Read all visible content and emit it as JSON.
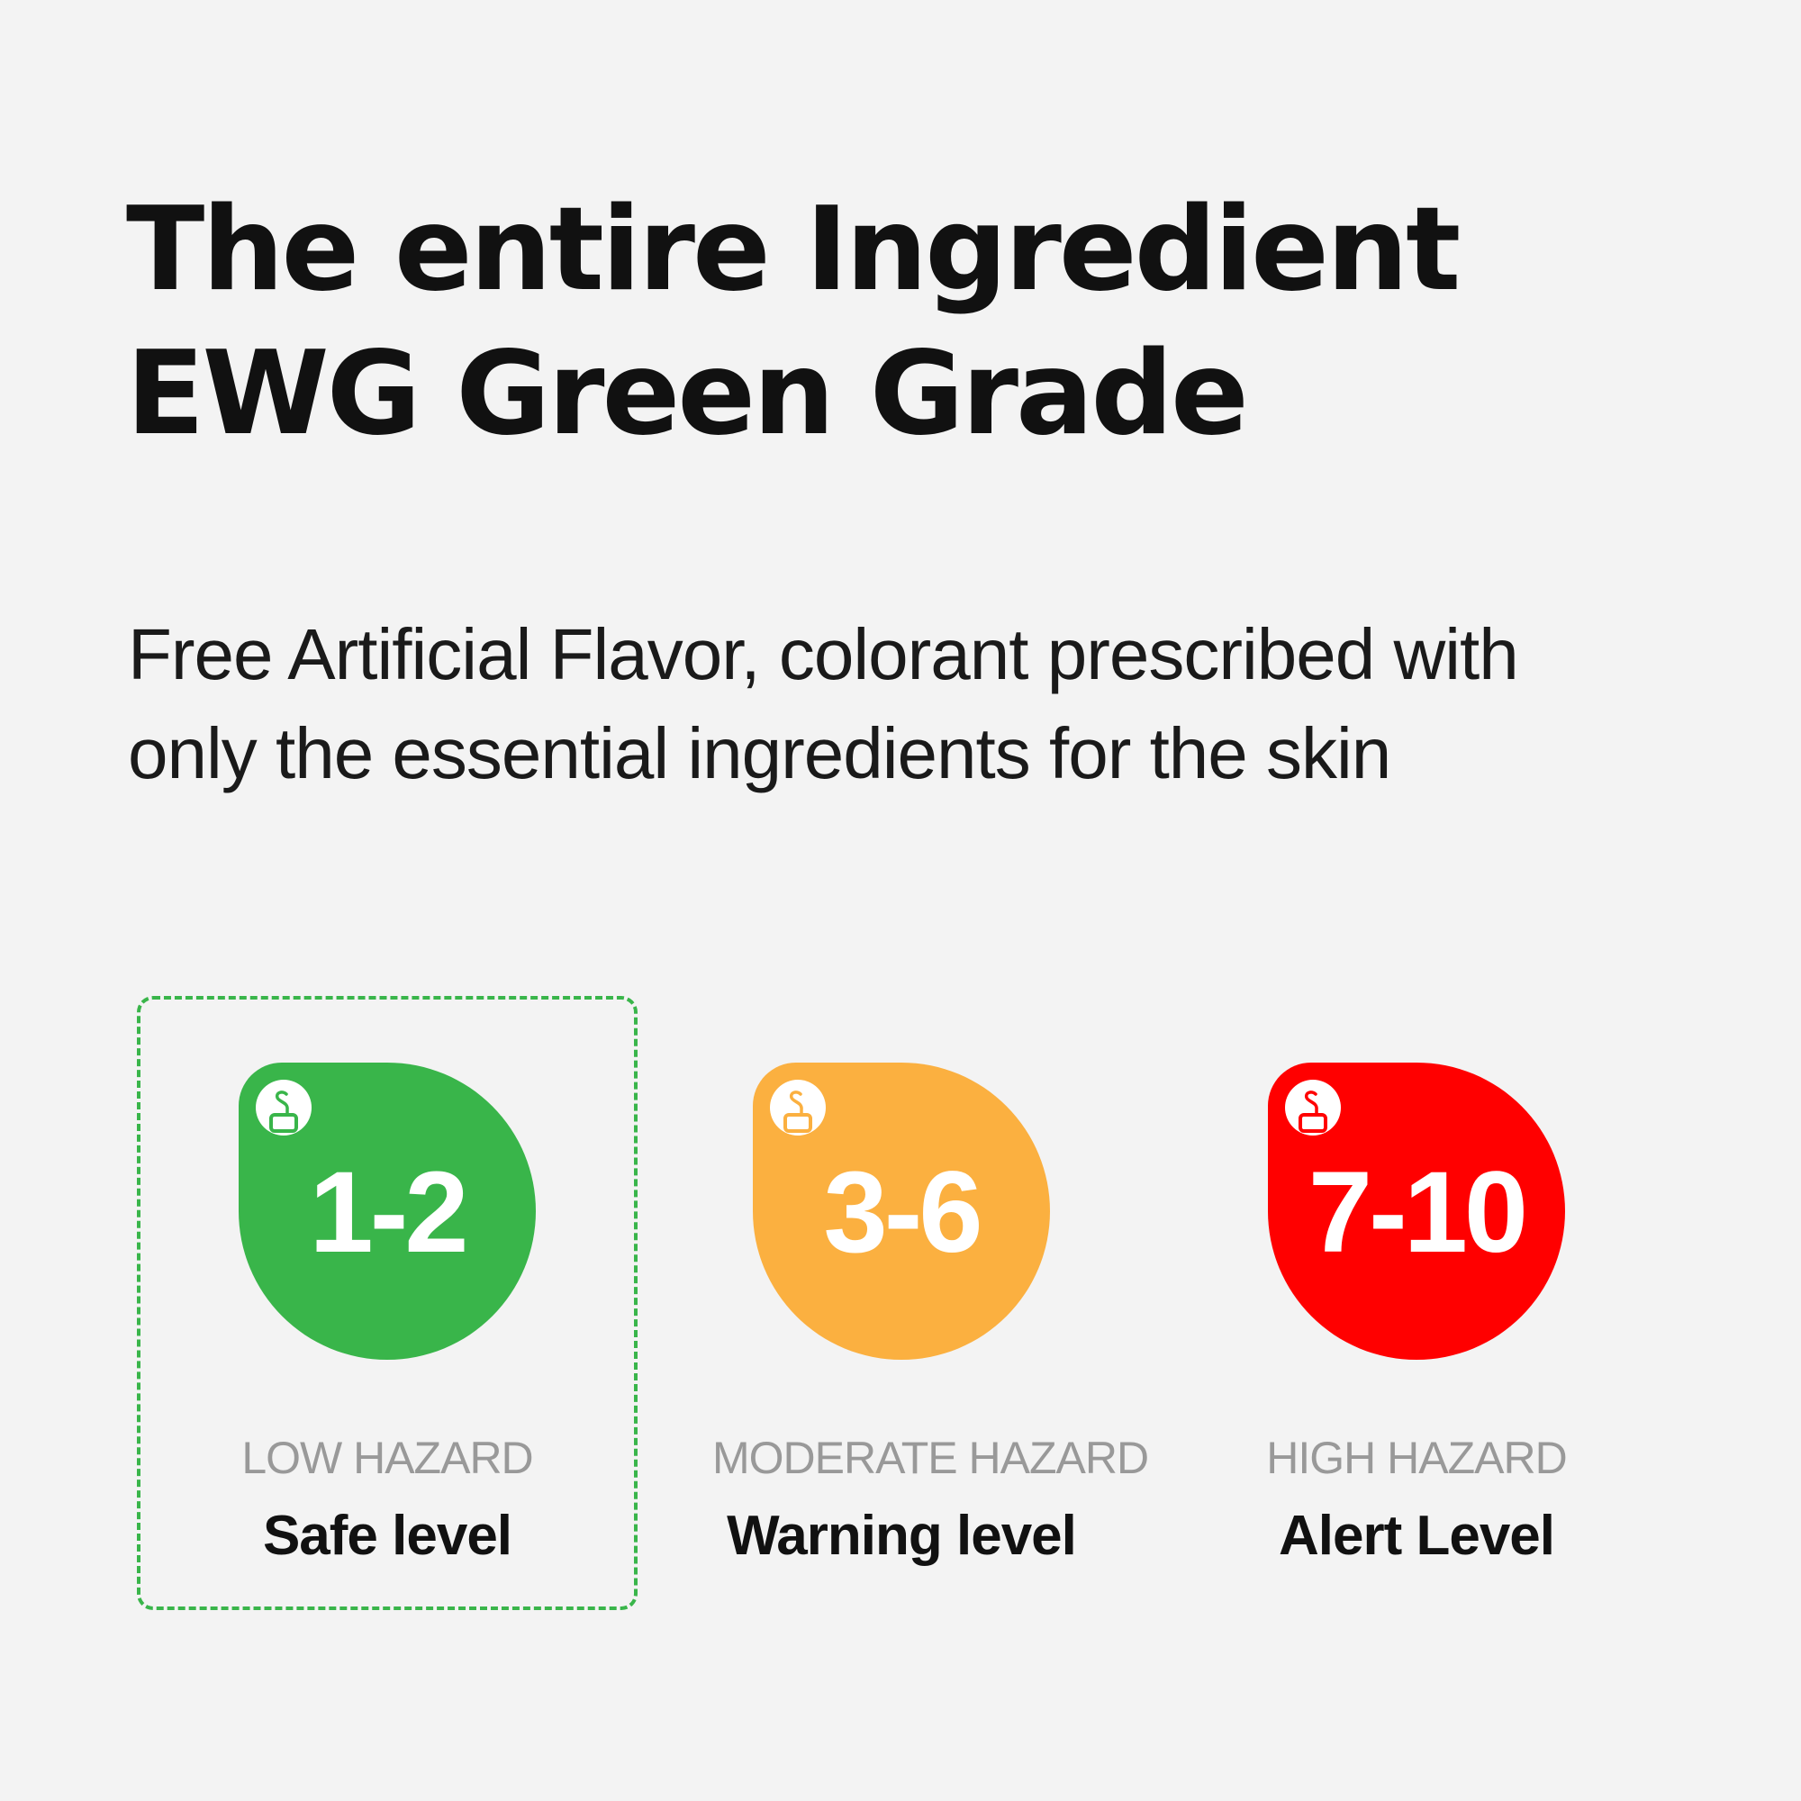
{
  "title": {
    "line1": "The entire Ingredient",
    "line2": "EWG Green Grade"
  },
  "subtitle": {
    "line1": "Free Artificial Flavor, colorant prescribed with",
    "line2": "only the essential ingredients for the skin"
  },
  "grades": [
    {
      "range": "1-2",
      "hazard": "LOW HAZARD",
      "level": "Safe level",
      "color": "#39b54a",
      "icon": "skin-safe-icon",
      "selected": true
    },
    {
      "range": "3-6",
      "hazard": "MODERATE HAZARD",
      "level": "Warning level",
      "color": "#fbb040",
      "icon": "skin-safe-icon",
      "selected": false
    },
    {
      "range": "7-10",
      "hazard": "HIGH HAZARD",
      "level": "Alert Level",
      "color": "#ff0000",
      "icon": "skin-safe-icon",
      "selected": false
    }
  ]
}
